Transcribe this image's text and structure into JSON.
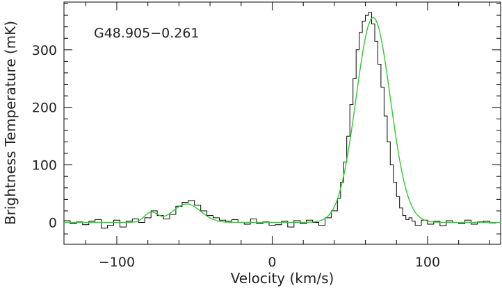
{
  "chart_data": {
    "type": "line",
    "title": "",
    "annotation": "G48.905−0.261",
    "xlabel": "Velocity (km/s)",
    "ylabel": "Brightness Temperature (mK)",
    "xlim": [
      -134,
      147
    ],
    "ylim": [
      -38,
      383
    ],
    "xticks_major": [
      -100,
      0,
      100
    ],
    "yticks_major": [
      0,
      100,
      200,
      300
    ],
    "grid": false,
    "series": [
      {
        "style": "histogram-step",
        "color": "#000000",
        "x": [
          -134,
          -130,
          -126,
          -122,
          -118,
          -114,
          -110,
          -106,
          -102,
          -98,
          -94,
          -90,
          -86,
          -82,
          -78,
          -74,
          -70,
          -66,
          -62,
          -58,
          -54,
          -50,
          -46,
          -42,
          -38,
          -34,
          -30,
          -26,
          -22,
          -18,
          -14,
          -10,
          -6,
          -2,
          2,
          6,
          10,
          14,
          18,
          22,
          26,
          30,
          34,
          38,
          42,
          44,
          46,
          48,
          50,
          52,
          54,
          56,
          58,
          60,
          62,
          64,
          66,
          68,
          70,
          72,
          74,
          76,
          78,
          80,
          82,
          84,
          86,
          88,
          90,
          92,
          96,
          100,
          104,
          108,
          112,
          116,
          120,
          124,
          128,
          132,
          136,
          140,
          144
        ],
        "values": [
          3,
          -2,
          1,
          -4,
          2,
          5,
          -10,
          -5,
          4,
          -8,
          2,
          6,
          0,
          8,
          20,
          12,
          6,
          14,
          28,
          35,
          38,
          30,
          20,
          12,
          8,
          4,
          2,
          5,
          0,
          -3,
          6,
          -2,
          1,
          -5,
          -4,
          2,
          -8,
          3,
          -2,
          4,
          0,
          -5,
          8,
          20,
          42,
          70,
          105,
          150,
          205,
          250,
          300,
          330,
          350,
          360,
          365,
          345,
          315,
          275,
          235,
          185,
          140,
          100,
          70,
          45,
          25,
          12,
          5,
          8,
          2,
          -5,
          4,
          -3,
          2,
          -6,
          3,
          0,
          -2,
          4,
          -3,
          1,
          2,
          -1,
          0
        ]
      },
      {
        "style": "gaussian-fit",
        "color": "#22cc22",
        "components": [
          {
            "amplitude": 17,
            "center": -78,
            "fwhm": 10
          },
          {
            "amplitude": 32,
            "center": -55,
            "fwhm": 21
          },
          {
            "amplitude": 356,
            "center": 65,
            "fwhm": 26
          }
        ]
      }
    ]
  }
}
